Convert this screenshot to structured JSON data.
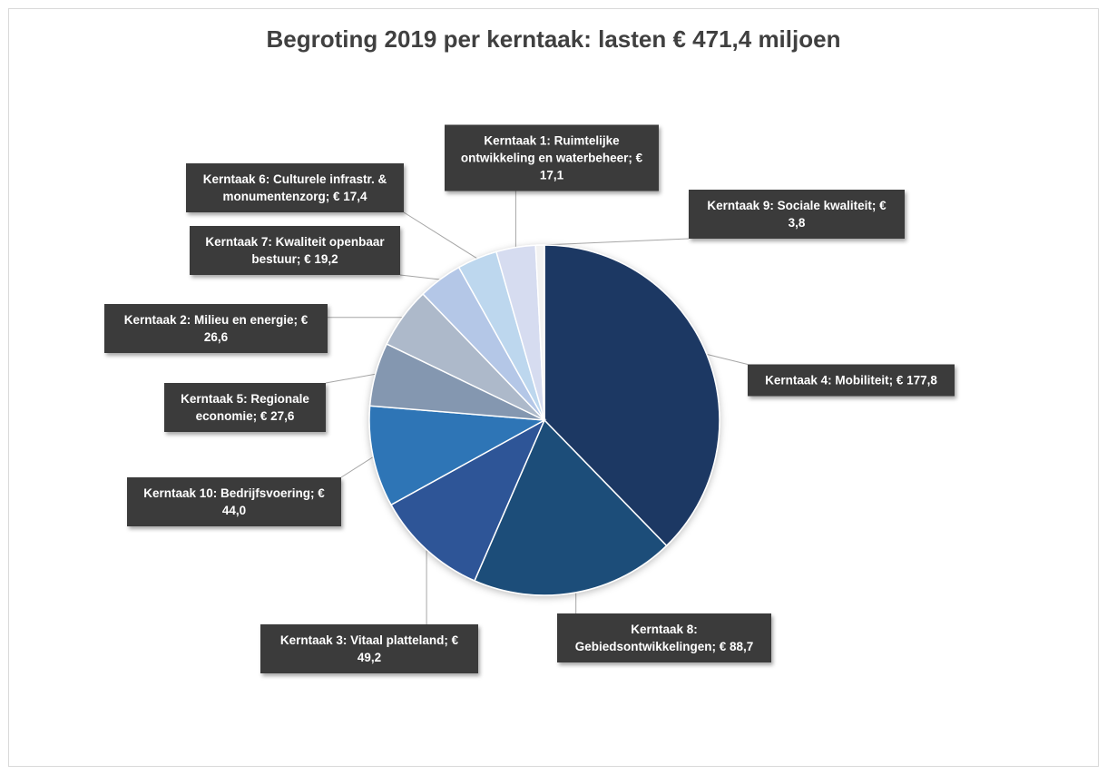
{
  "chart_data": {
    "type": "pie",
    "title": "Begroting 2019 per kerntaak: lasten € 471,4 miljoen",
    "slices": [
      {
        "label": "Kerntaak 4: Mobiliteit;  € 177,8",
        "value": 177.8,
        "color": "#1f3864"
      },
      {
        "label": "Kerntaak 8: Gebiedsontwikkelingen;  € 88,7",
        "value": 88.7,
        "color": "#1f4e79"
      },
      {
        "label": "Kerntaak 3: Vitaal platteland;  € 49,2",
        "value": 49.2,
        "color": "#2f5597"
      },
      {
        "label": "Kerntaak 10: Bedrijfsvoering;  € 44,0",
        "value": 44.0,
        "color": "#2e75b6"
      },
      {
        "label": "Kerntaak 5: Regionale economie;  € 27,6",
        "value": 27.6,
        "color": "#8497b0"
      },
      {
        "label": "Kerntaak 2: Milieu en energie;  € 26,6",
        "value": 26.6,
        "color": "#adb9ca"
      },
      {
        "label": "Kerntaak 7: Kwaliteit openbaar bestuur;  € 19,2",
        "value": 19.2,
        "color": "#b4c7e7"
      },
      {
        "label": "Kerntaak 6: Culturele infrastr. & monumentenzorg;  € 17,4",
        "value": 17.4,
        "color": "#bdd7ee"
      },
      {
        "label": "Kerntaak 1: Ruimtelijke ontwikkeling en waterbeheer;  € 17,1",
        "value": 17.1,
        "color": "#d6dcf0"
      },
      {
        "label": "Kerntaak 9: Sociale kwaliteit;  € 3,8",
        "value": 3.8,
        "color": "#f2f2f2"
      }
    ],
    "label_lines": [
      [
        "Kerntaak 4: Mobiliteit;  € 177,8"
      ],
      [
        "Kerntaak 8:",
        "Gebiedsontwikkelingen;  € 88,7"
      ],
      [
        "Kerntaak 3: Vitaal platteland;  €",
        "49,2"
      ],
      [
        "Kerntaak 10: Bedrijfsvoering;  €",
        "44,0"
      ],
      [
        "Kerntaak 5: Regionale",
        "economie;  € 27,6"
      ],
      [
        "Kerntaak 2: Milieu en energie;  €",
        "26,6"
      ],
      [
        "Kerntaak 7: Kwaliteit openbaar",
        "bestuur;  € 19,2"
      ],
      [
        "Kerntaak 6: Culturele infrastr. &",
        "monumentenzorg;  € 17,4"
      ],
      [
        "Kerntaak 1: Ruimtelijke",
        "ontwikkeling en waterbeheer;  €",
        "17,1"
      ],
      [
        "Kerntaak 9: Sociale kwaliteit;  €",
        "3,8"
      ]
    ],
    "label_style": {
      "background": "#3a3a3a",
      "text_color": "#ffffff"
    },
    "start_angle_deg": 0,
    "direction": "clockwise",
    "legend": "none"
  }
}
